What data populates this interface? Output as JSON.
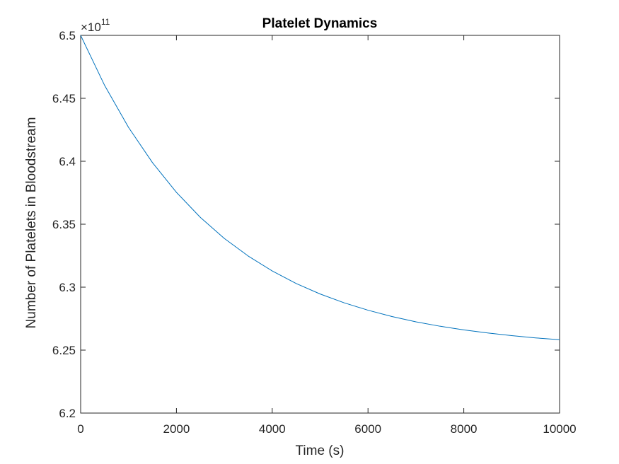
{
  "chart_data": {
    "type": "line",
    "title": "Platelet Dynamics",
    "xlabel": "Time (s)",
    "ylabel": "Number of Platelets in Bloodstream",
    "xlim": [
      0,
      10000
    ],
    "ylim": [
      6.2,
      6.5
    ],
    "xticks": [
      0,
      2000,
      4000,
      6000,
      8000,
      10000
    ],
    "yticks": [
      6.2,
      6.25,
      6.3,
      6.35,
      6.4,
      6.45,
      6.5
    ],
    "ytick_labels": [
      "6.2",
      "6.25",
      "6.3",
      "6.35",
      "6.4",
      "6.45",
      "6.5"
    ],
    "y_exponent_base": "×10",
    "y_exponent_power": "11",
    "line_color": "#0072bd",
    "grid": false,
    "series": [
      {
        "x": [
          0,
          500,
          1000,
          1500,
          2000,
          2500,
          3000,
          3500,
          4000,
          4500,
          5000,
          5500,
          6000,
          6500,
          7000,
          7500,
          8000,
          8500,
          9000,
          9500,
          10000
        ],
        "values": [
          6.5,
          6.4603,
          6.4269,
          6.3989,
          6.3753,
          6.3554,
          6.3387,
          6.3247,
          6.3129,
          6.3029,
          6.2946,
          6.2876,
          6.2817,
          6.2767,
          6.2725,
          6.269,
          6.2661,
          6.2636,
          6.2615,
          6.2597,
          6.2583
        ]
      }
    ]
  }
}
